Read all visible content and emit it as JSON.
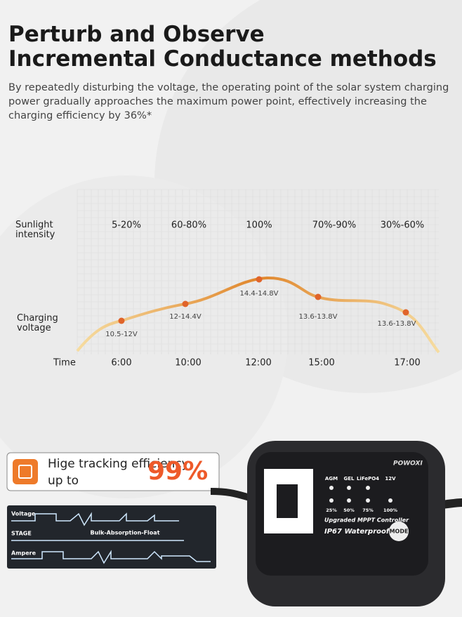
{
  "header": {
    "title_lines": [
      "Perturb and Observe",
      "Incremental Conductance methods"
    ],
    "description": "By repeatedly disturbing the voltage, the operating point of the solar system charging power gradually approaches the maximum power point, effectively increasing the charging efficiency by 36%*"
  },
  "curve": {
    "row_labels": {
      "sunlight": "Sunlight intensity",
      "voltage": "Charging voltage",
      "time": "Time"
    },
    "points": [
      {
        "time": "6:00",
        "sunlight": "5-20%",
        "voltage": "10.5-12V"
      },
      {
        "time": "10:00",
        "sunlight": "60-80%",
        "voltage": "12-14.4V"
      },
      {
        "time": "12:00",
        "sunlight": "100%",
        "voltage": "14.4-14.8V"
      },
      {
        "time": "15:00",
        "sunlight": "70%-90%",
        "voltage": "13.6-13.8V"
      },
      {
        "time": "17:00",
        "sunlight": "30%-60%",
        "voltage": "13.6-13.8V"
      }
    ]
  },
  "badge": {
    "text": "Hige tracking efficiency up to",
    "value": "99%"
  },
  "waveform": {
    "labels": [
      "Voltage",
      "STAGE",
      "Ampere"
    ],
    "stage_text": "Bulk-Absorption-Float"
  },
  "device": {
    "brand": "POWOXI",
    "modes": [
      "AGM",
      "GEL",
      "LiFePO4",
      "12V"
    ],
    "levels": [
      "25%",
      "50%",
      "75%",
      "100%"
    ],
    "line1": "Upgraded MPPT Controller",
    "line2": "IP67 Waterproof",
    "button": "MODE"
  }
}
